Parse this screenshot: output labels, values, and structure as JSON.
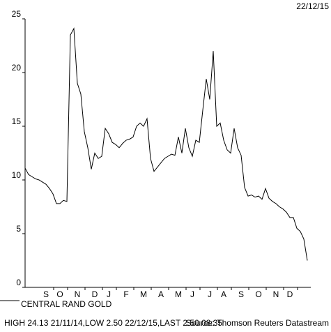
{
  "chart_data": {
    "type": "line",
    "date": "22/12/15",
    "categories": [
      null,
      null,
      null,
      null,
      null,
      null,
      "S",
      null,
      null,
      null,
      "O",
      null,
      null,
      null,
      null,
      "N",
      null,
      null,
      null,
      null,
      "D",
      null,
      null,
      null,
      "J",
      null,
      null,
      null,
      null,
      "F",
      null,
      null,
      null,
      null,
      "M",
      null,
      null,
      null,
      null,
      "A",
      null,
      null,
      null,
      null,
      "M",
      null,
      null,
      null,
      "J",
      null,
      null,
      null,
      null,
      "J",
      null,
      null,
      null,
      "A",
      null,
      null,
      null,
      null,
      "S",
      null,
      null,
      null,
      null,
      "O",
      null,
      null,
      null,
      null,
      "N",
      null,
      null,
      null,
      "D",
      null,
      null,
      null,
      null,
      null
    ],
    "series": [
      {
        "name": "CENTRAL RAND GOLD",
        "color": "#000000",
        "values": [
          11.1,
          10.5,
          10.3,
          10.1,
          10.0,
          9.8,
          9.6,
          9.2,
          8.7,
          7.8,
          7.8,
          8.1,
          8.0,
          23.5,
          24.1,
          19.0,
          18.0,
          14.5,
          13.0,
          11.0,
          12.5,
          12.0,
          12.2,
          14.8,
          14.3,
          13.5,
          13.3,
          13.0,
          13.4,
          13.7,
          13.8,
          14.0,
          15.0,
          15.3,
          15.0,
          15.7,
          12.0,
          10.8,
          11.2,
          11.6,
          12.0,
          12.2,
          12.4,
          12.3,
          14.0,
          12.5,
          14.8,
          13.0,
          12.2,
          13.7,
          13.5,
          16.5,
          19.4,
          17.5,
          22.0,
          15.0,
          15.3,
          13.7,
          12.8,
          12.5,
          14.8,
          13.0,
          12.3,
          9.3,
          8.5,
          8.6,
          8.4,
          8.5,
          8.2,
          9.2,
          8.3,
          8.0,
          7.8,
          7.5,
          7.3,
          7.0,
          6.5,
          6.5,
          5.5,
          5.2,
          4.5,
          2.5
        ]
      }
    ],
    "ylim": [
      0,
      25
    ],
    "yticks": [
      0,
      5,
      10,
      15,
      20,
      25
    ],
    "stats": "HIGH 24.13 21/11/14,LOW 2.50 22/12/15,LAST 2.50 08:35",
    "source": "Source: Thomson Reuters Datastream"
  }
}
